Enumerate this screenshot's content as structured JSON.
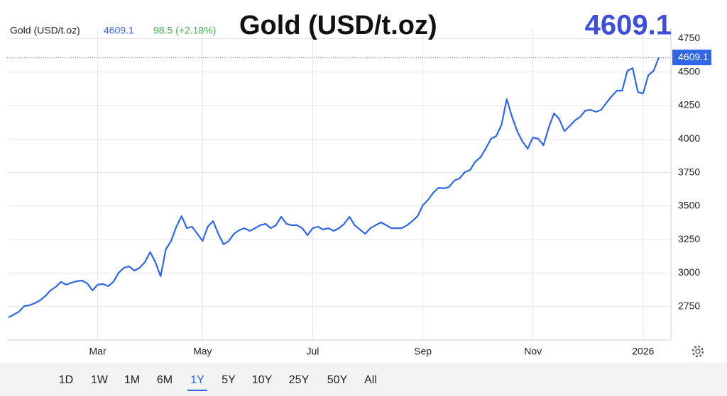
{
  "chart_data": {
    "type": "line",
    "title": "Gold (USD/t.oz)",
    "legend_name": "Gold (USD/t.oz)",
    "last_price": 4609.1,
    "change_label": "98.5 (+2.18%)",
    "categories": [
      null,
      null,
      null,
      null,
      null,
      null,
      null,
      null,
      null,
      null,
      null,
      null,
      null,
      null,
      null,
      null,
      null,
      "Mar",
      null,
      null,
      null,
      null,
      null,
      null,
      null,
      null,
      null,
      null,
      null,
      null,
      null,
      null,
      null,
      null,
      null,
      null,
      null,
      "May",
      null,
      null,
      null,
      null,
      null,
      null,
      null,
      null,
      null,
      null,
      null,
      null,
      null,
      null,
      null,
      null,
      null,
      null,
      null,
      null,
      "Jul",
      null,
      null,
      null,
      null,
      null,
      null,
      null,
      null,
      null,
      null,
      null,
      null,
      null,
      null,
      null,
      null,
      null,
      null,
      null,
      null,
      "Sep",
      null,
      null,
      null,
      null,
      null,
      null,
      null,
      null,
      null,
      null,
      null,
      null,
      null,
      null,
      null,
      null,
      null,
      null,
      null,
      null,
      "Nov",
      null,
      null,
      null,
      null,
      null,
      null,
      null,
      null,
      null,
      null,
      null,
      null,
      null,
      null,
      null,
      null,
      null,
      null,
      null,
      null,
      "2026",
      null,
      null,
      null
    ],
    "series": [
      {
        "name": "Gold (USD/t.oz)",
        "color": "#2f66e6",
        "values": [
          2669,
          2690,
          2712,
          2754,
          2759,
          2775,
          2796,
          2828,
          2870,
          2897,
          2934,
          2913,
          2928,
          2939,
          2944,
          2923,
          2870,
          2913,
          2918,
          2902,
          2934,
          3002,
          3039,
          3050,
          3018,
          3039,
          3082,
          3156,
          3082,
          2976,
          3177,
          3240,
          3346,
          3425,
          3335,
          3346,
          3293,
          3240,
          3346,
          3388,
          3293,
          3214,
          3240,
          3293,
          3320,
          3335,
          3314,
          3335,
          3357,
          3367,
          3335,
          3357,
          3420,
          3367,
          3357,
          3357,
          3335,
          3283,
          3335,
          3346,
          3325,
          3335,
          3314,
          3335,
          3367,
          3420,
          3357,
          3325,
          3293,
          3335,
          3357,
          3378,
          3357,
          3335,
          3335,
          3335,
          3357,
          3388,
          3425,
          3505,
          3547,
          3600,
          3637,
          3632,
          3642,
          3690,
          3706,
          3753,
          3769,
          3832,
          3864,
          3928,
          4002,
          4023,
          4107,
          4298,
          4166,
          4060,
          3981,
          3928,
          4012,
          4002,
          3954,
          4086,
          4192,
          4150,
          4060,
          4097,
          4139,
          4166,
          4213,
          4218,
          4203,
          4218,
          4271,
          4319,
          4361,
          4361,
          4509,
          4530,
          4351,
          4340,
          4477,
          4509,
          4609.1
        ]
      }
    ],
    "ylim": [
      2500,
      4800
    ],
    "yticks": [
      2750,
      3000,
      3250,
      3500,
      3750,
      4000,
      4250,
      4500,
      4750
    ],
    "grid": true,
    "ranges": [
      "1D",
      "1W",
      "1M",
      "6M",
      "1Y",
      "5Y",
      "10Y",
      "25Y",
      "50Y",
      "All"
    ],
    "selected_range": "1Y"
  }
}
